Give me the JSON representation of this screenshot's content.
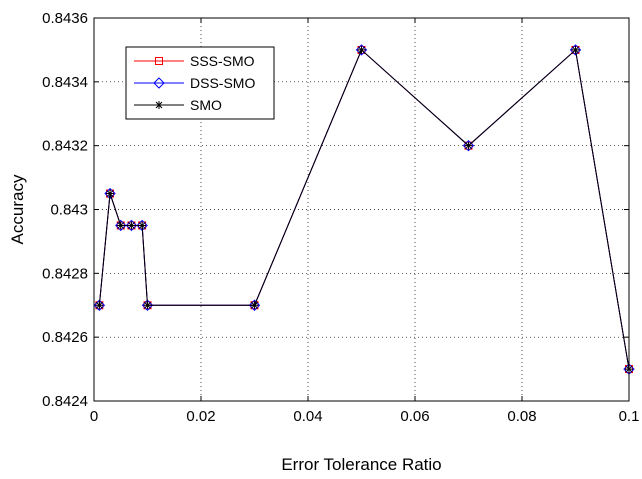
{
  "chart_data": {
    "type": "line",
    "title": "",
    "xlabel": "Error Tolerance Ratio",
    "ylabel": "Accuracy",
    "xlim": [
      0,
      0.1
    ],
    "ylim": [
      0.8424,
      0.8436
    ],
    "grid": true,
    "legend_position": "top-left",
    "x_ticks": [
      0,
      0.02,
      0.04,
      0.06,
      0.08,
      0.1
    ],
    "x_tick_labels": [
      "0",
      "0.02",
      "0.04",
      "0.06",
      "0.08",
      "0.1"
    ],
    "y_ticks": [
      0.8424,
      0.8426,
      0.8428,
      0.843,
      0.8432,
      0.8434,
      0.8436
    ],
    "y_tick_labels": [
      "0.8424",
      "0.8426",
      "0.8428",
      "0.843",
      "0.8432",
      "0.8434",
      "0.8436"
    ],
    "x": [
      0.001,
      0.003,
      0.005,
      0.007,
      0.009,
      0.01,
      0.03,
      0.05,
      0.07,
      0.09,
      0.1
    ],
    "series": [
      {
        "name": "SSS-SMO",
        "color": "#ff0000",
        "marker": "square",
        "values": [
          0.8427,
          0.84305,
          0.84295,
          0.84295,
          0.84295,
          0.8427,
          0.8427,
          0.8435,
          0.8432,
          0.8435,
          0.8425
        ]
      },
      {
        "name": "DSS-SMO",
        "color": "#0000ff",
        "marker": "diamond",
        "values": [
          0.8427,
          0.84305,
          0.84295,
          0.84295,
          0.84295,
          0.8427,
          0.8427,
          0.8435,
          0.8432,
          0.8435,
          0.8425
        ]
      },
      {
        "name": "SMO",
        "color": "#000000",
        "marker": "star",
        "values": [
          0.8427,
          0.84305,
          0.84295,
          0.84295,
          0.84295,
          0.8427,
          0.8427,
          0.8435,
          0.8432,
          0.8435,
          0.8425
        ]
      }
    ]
  }
}
